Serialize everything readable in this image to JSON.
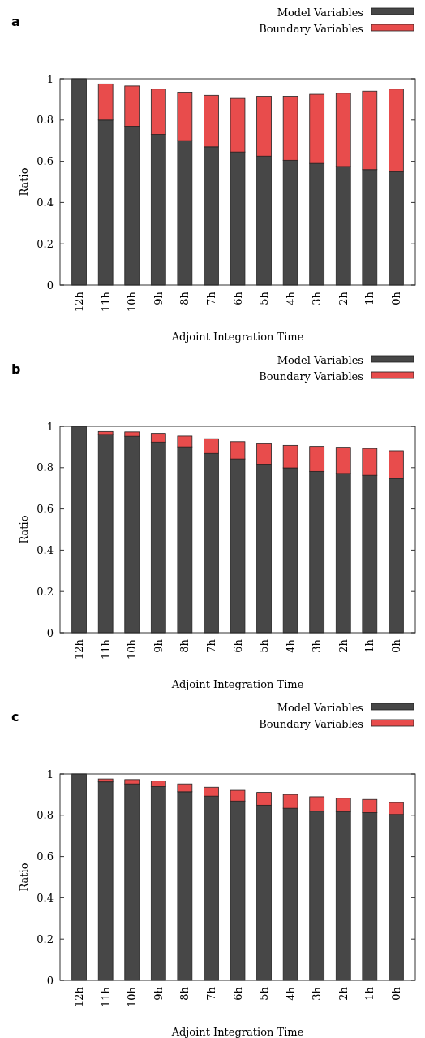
{
  "chart_data": [
    {
      "type": "bar",
      "title": "a",
      "xlabel": "Adjoint Integration Time",
      "ylabel": "Ratio",
      "stacked": true,
      "legend": "top right",
      "ylim": [
        0,
        1
      ],
      "yticks": [
        0,
        0.2,
        0.4,
        0.6,
        0.8,
        1
      ],
      "categories": [
        "12h",
        "11h",
        "10h",
        "9h",
        "8h",
        "7h",
        "6h",
        "5h",
        "4h",
        "3h",
        "2h",
        "1h",
        "0h"
      ],
      "series": [
        {
          "name": "Model Variables",
          "color": "#474747",
          "values": [
            1,
            0.8,
            0.77,
            0.73,
            0.7,
            0.67,
            0.645,
            0.625,
            0.605,
            0.59,
            0.575,
            0.56,
            0.55
          ]
        },
        {
          "name": "Boundary Variables",
          "color": "#e84c4c",
          "values": [
            0,
            0.175,
            0.195,
            0.22,
            0.235,
            0.25,
            0.26,
            0.29,
            0.31,
            0.335,
            0.355,
            0.38,
            0.4
          ]
        }
      ]
    },
    {
      "type": "bar",
      "title": "b",
      "xlabel": "Adjoint Integration Time",
      "ylabel": "Ratio",
      "stacked": true,
      "legend": "top right",
      "ylim": [
        0,
        1
      ],
      "yticks": [
        0,
        0.2,
        0.4,
        0.6,
        0.8,
        1
      ],
      "categories": [
        "12h",
        "11h",
        "10h",
        "9h",
        "8h",
        "7h",
        "6h",
        "5h",
        "4h",
        "3h",
        "2h",
        "1h",
        "0h"
      ],
      "series": [
        {
          "name": "Model Variables",
          "color": "#474747",
          "values": [
            1,
            0.961,
            0.952,
            0.924,
            0.901,
            0.869,
            0.842,
            0.817,
            0.799,
            0.782,
            0.772,
            0.763,
            0.748
          ]
        },
        {
          "name": "Boundary Variables",
          "color": "#e84c4c",
          "values": [
            0,
            0.014,
            0.021,
            0.042,
            0.052,
            0.071,
            0.084,
            0.099,
            0.109,
            0.121,
            0.127,
            0.13,
            0.134
          ]
        }
      ]
    },
    {
      "type": "bar",
      "title": "c",
      "xlabel": "Adjoint Integration Time",
      "ylabel": "Ratio",
      "stacked": true,
      "legend": "top right",
      "ylim": [
        0,
        1
      ],
      "yticks": [
        0,
        0.2,
        0.4,
        0.6,
        0.8,
        1
      ],
      "categories": [
        "12h",
        "11h",
        "10h",
        "9h",
        "8h",
        "7h",
        "6h",
        "5h",
        "4h",
        "3h",
        "2h",
        "1h",
        "0h"
      ],
      "series": [
        {
          "name": "Model Variables",
          "color": "#474747",
          "values": [
            1,
            0.962,
            0.952,
            0.939,
            0.914,
            0.893,
            0.869,
            0.849,
            0.834,
            0.82,
            0.818,
            0.813,
            0.804
          ]
        },
        {
          "name": "Boundary Variables",
          "color": "#e84c4c",
          "values": [
            0,
            0.014,
            0.021,
            0.027,
            0.038,
            0.043,
            0.052,
            0.062,
            0.067,
            0.07,
            0.065,
            0.064,
            0.058
          ]
        }
      ]
    }
  ]
}
